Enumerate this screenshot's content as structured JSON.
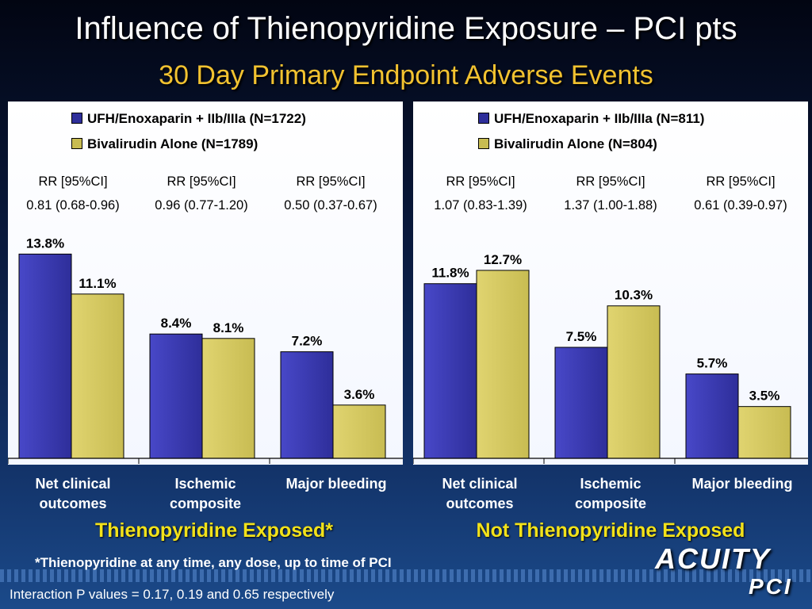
{
  "title": "Influence of Thienopyridine Exposure – PCI pts",
  "subtitle": "30 Day Primary Endpoint Adverse Events",
  "colors": {
    "series1": "#2e2e9a",
    "series2": "#c8bc52",
    "group_label": "#f2e21a",
    "subtitle": "#f2c230"
  },
  "chart_data": [
    {
      "type": "bar",
      "group_label": "Thienopyridine Exposed*",
      "categories": [
        "Net clinical outcomes",
        "Ischemic composite",
        "Major bleeding"
      ],
      "category_lines": [
        [
          "Net clinical",
          "outcomes"
        ],
        [
          "Ischemic",
          "composite"
        ],
        [
          "Major bleeding"
        ]
      ],
      "series": [
        {
          "name": "UFH/Enoxaparin + IIb/IIIa (N=1722)",
          "values": [
            13.8,
            8.4,
            7.2
          ],
          "labels": [
            "13.8%",
            "8.4%",
            "7.2%"
          ]
        },
        {
          "name": "Bivalirudin Alone (N=1789)",
          "values": [
            11.1,
            8.1,
            3.6
          ],
          "labels": [
            "11.1%",
            "8.1%",
            "3.6%"
          ]
        }
      ],
      "rr_header": [
        "RR [95%CI]",
        "RR [95%CI]",
        "RR [95%CI]"
      ],
      "rr_values": [
        "0.81 (0.68-0.96)",
        "0.96 (0.77-1.20)",
        "0.50 (0.37-0.67)"
      ],
      "ylim": [
        0,
        15
      ],
      "legend": "top-center",
      "grid": false
    },
    {
      "type": "bar",
      "group_label": "Not Thienopyridine Exposed",
      "categories": [
        "Net clinical outcomes",
        "Ischemic composite",
        "Major bleeding"
      ],
      "category_lines": [
        [
          "Net clinical",
          "outcomes"
        ],
        [
          "Ischemic",
          "composite"
        ],
        [
          "Major bleeding"
        ]
      ],
      "series": [
        {
          "name": "UFH/Enoxaparin + IIb/IIIa (N=811)",
          "values": [
            11.8,
            7.5,
            5.7
          ],
          "labels": [
            "11.8%",
            "7.5%",
            "5.7%"
          ]
        },
        {
          "name": "Bivalirudin Alone (N=804)",
          "values": [
            12.7,
            10.3,
            3.5
          ],
          "labels": [
            "12.7%",
            "10.3%",
            "3.5%"
          ]
        }
      ],
      "rr_header": [
        "RR [95%CI]",
        "RR [95%CI]",
        "RR [95%CI]"
      ],
      "rr_values": [
        "1.07 (0.83-1.39)",
        "1.37 (1.00-1.88)",
        "0.61 (0.39-0.97)"
      ],
      "ylim": [
        0,
        15
      ],
      "legend": "top-center",
      "grid": false
    }
  ],
  "footnote": "*Thienopyridine at any time, any dose, up to time of PCI",
  "interaction_note": "Interaction P values = 0.17, 0.19 and 0.65 respectively",
  "logo": {
    "line1": "ACUITY",
    "line2": "PCI"
  }
}
